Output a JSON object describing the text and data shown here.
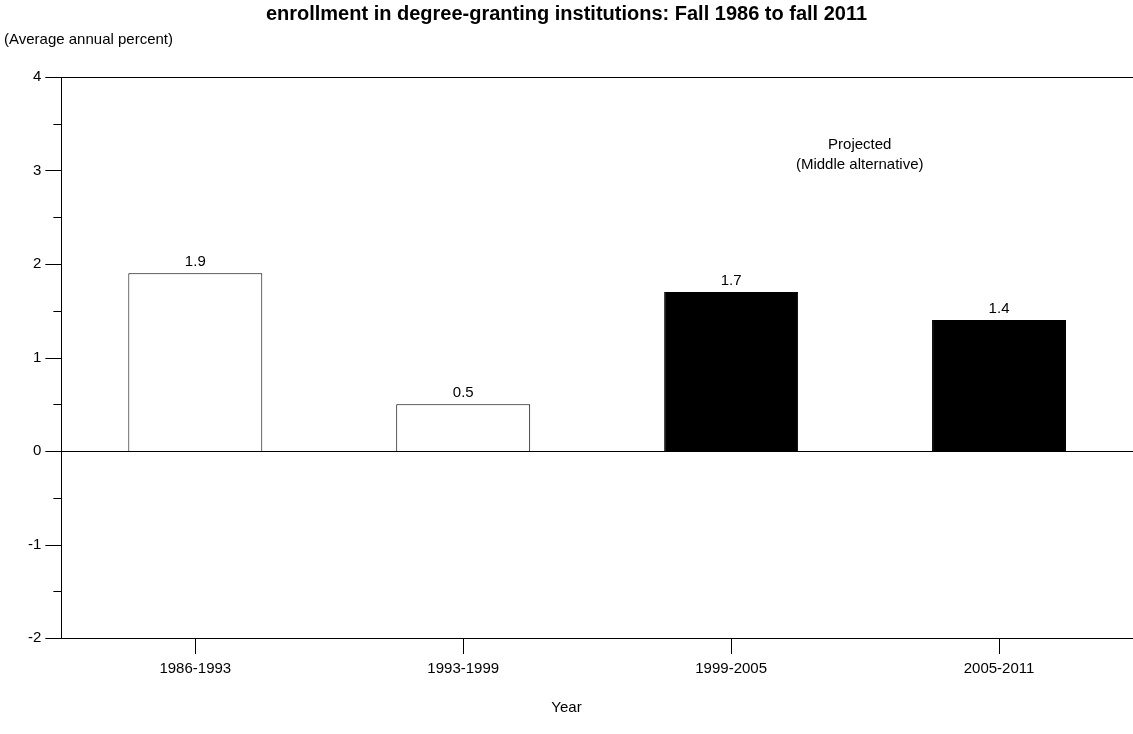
{
  "chart_data": {
    "type": "bar",
    "title": "enrollment in degree-granting institutions: Fall 1986 to fall 2011",
    "xlabel": "Year",
    "ylabel": "(Average annual percent)",
    "categories": [
      "1986-1993",
      "1993-1999",
      "1999-2005",
      "2005-2011"
    ],
    "values": [
      1.9,
      0.5,
      1.7,
      1.4
    ],
    "colors": [
      "#ffffff",
      "#ffffff",
      "#000000",
      "#000000"
    ],
    "ylim": [
      -2,
      4
    ],
    "yticks": [
      -2,
      {
        "value": -1.5,
        "label": null
      },
      -1,
      {
        "value": -0.5,
        "label": null
      },
      0,
      {
        "value": 0.5,
        "label": null
      },
      1,
      {
        "value": 1.5,
        "label": null
      },
      2,
      {
        "value": 2.5,
        "label": null
      },
      3,
      {
        "value": 3.5,
        "label": null
      },
      4
    ],
    "annotations": [
      "Projected",
      "(Middle alternative)"
    ],
    "data_labels": true,
    "legend": false
  }
}
